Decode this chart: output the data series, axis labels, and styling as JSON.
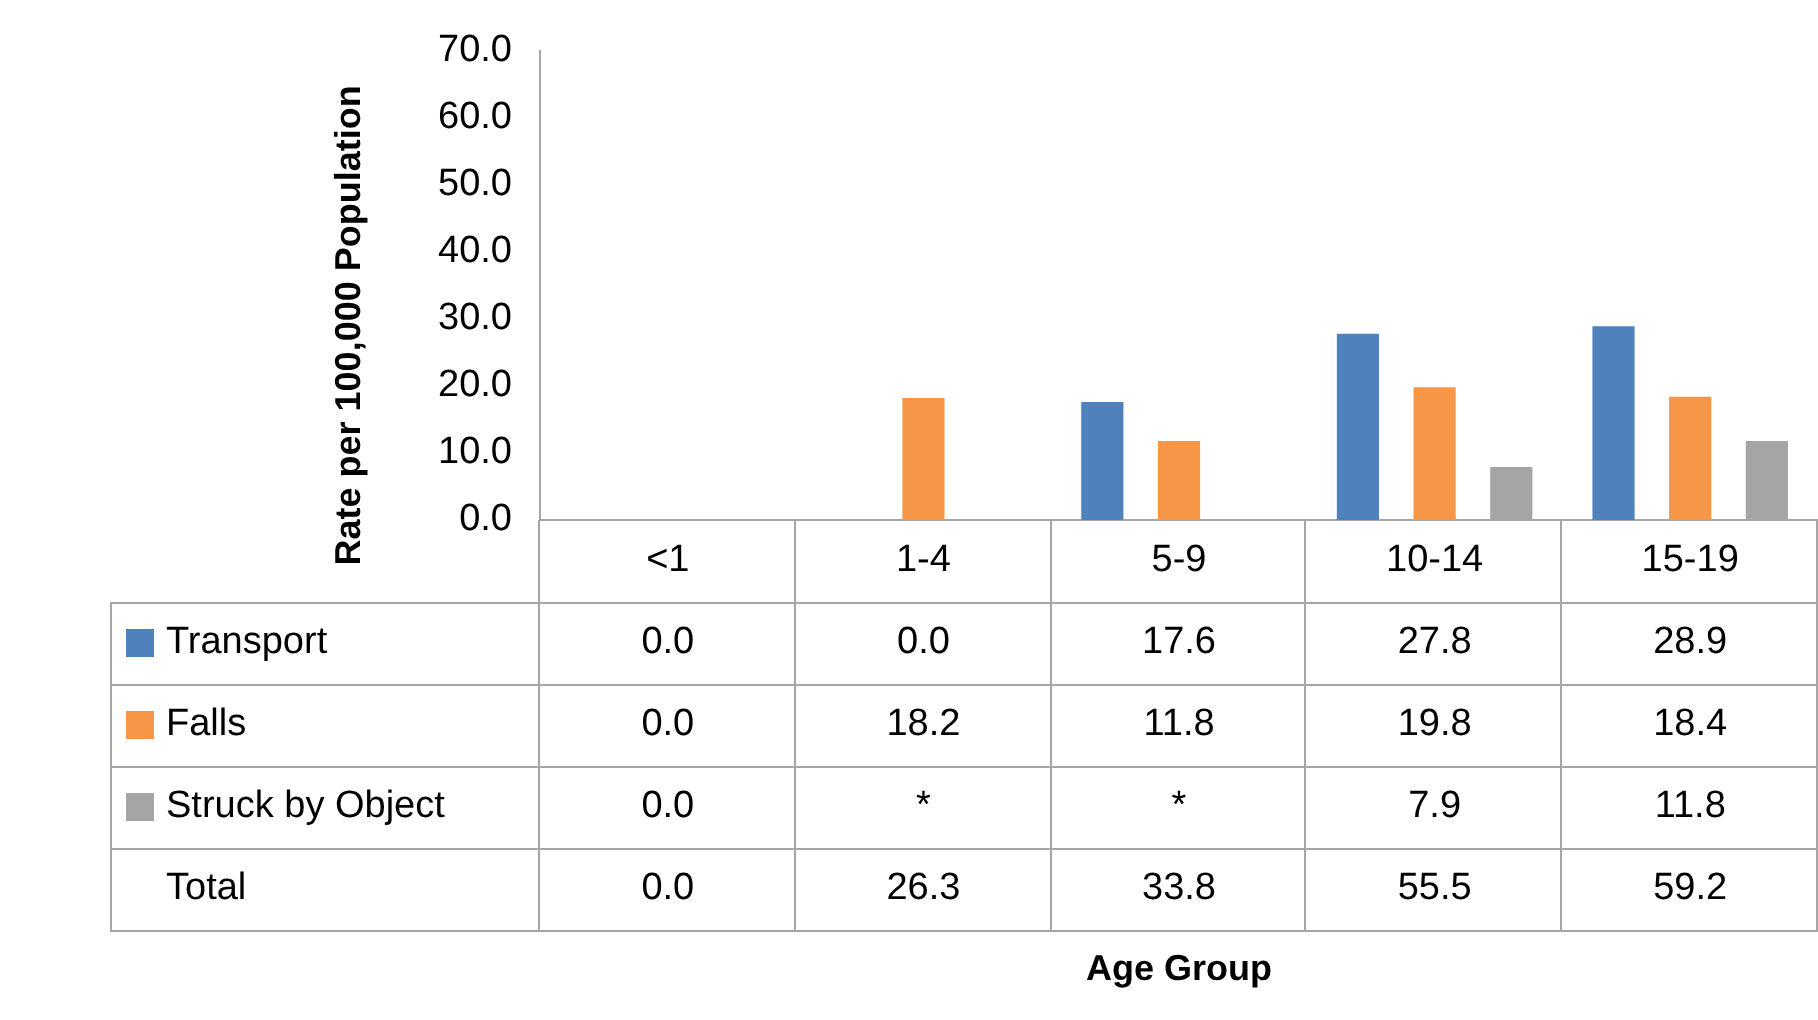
{
  "chart_data": {
    "type": "bar",
    "ylabel": "Rate per 100,000 Population",
    "categories": [
      "<1",
      "1-4",
      "5-9",
      "10-14",
      "15-19"
    ],
    "series": [
      {
        "name": "Transport",
        "color": "#4f81bd",
        "values": [
          0,
          0,
          17.6,
          27.8,
          28.9
        ],
        "value_labels": [
          "0.0",
          "0.0",
          "17.6",
          "27.8",
          "28.9"
        ]
      },
      {
        "name": "Falls",
        "color": "#f79646",
        "values": [
          0,
          18.2,
          11.8,
          19.8,
          18.4
        ],
        "value_labels": [
          "0.0",
          "18.2",
          "11.8",
          "19.8",
          "18.4"
        ]
      },
      {
        "name": "Struck by Object",
        "color": "#a5a5a5",
        "values": [
          0,
          null,
          null,
          7.9,
          11.8
        ],
        "value_labels": [
          "0.0",
          "*",
          "*",
          "7.9",
          "11.8"
        ]
      }
    ],
    "annotations": [
      "Total",
      "0.0",
      "26.3",
      "33.8",
      "55.5",
      "59.2",
      "Age Group"
    ],
    "legend": "bottom",
    "ylim": [
      0,
      70
    ],
    "yticks": [
      {
        "value": 0,
        "label": "0.0"
      },
      {
        "value": 10,
        "label": "10.0"
      },
      {
        "value": 20,
        "label": "20.0"
      },
      {
        "value": 30,
        "label": "30.0"
      },
      {
        "value": 40,
        "label": "40.0"
      },
      {
        "value": 50,
        "label": "50.0"
      },
      {
        "value": 60,
        "label": "60.0"
      },
      {
        "value": 70,
        "label": "70.0"
      }
    ],
    "grid": false
  }
}
